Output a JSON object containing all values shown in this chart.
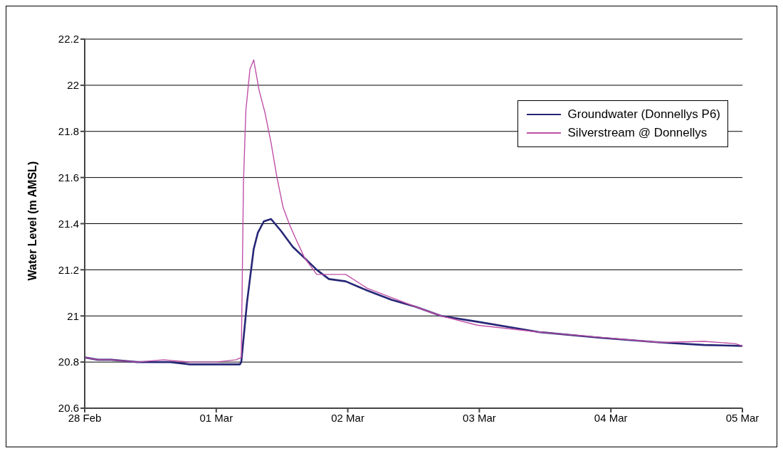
{
  "chart_data": {
    "type": "line",
    "ylabel": "Water Level (m AMSL)",
    "xlim": [
      "--02-28",
      "--03-05"
    ],
    "xticks": [
      {
        "value": "--02-28",
        "label": "28 Feb"
      },
      {
        "value": "--03-01",
        "label": "01 Mar"
      },
      {
        "value": "--03-02",
        "label": "02 Mar"
      },
      {
        "value": "--03-03",
        "label": "03 Mar"
      },
      {
        "value": "--03-04",
        "label": "04 Mar"
      },
      {
        "value": "--03-05",
        "label": "05 Mar"
      }
    ],
    "ylim": [
      20.6,
      22.2
    ],
    "yticks": [
      20.6,
      20.8,
      21,
      21.2,
      21.4,
      21.6,
      21.8,
      22,
      22.2
    ],
    "grid": "y",
    "legend": "top right",
    "marker": "none",
    "line_style": "solid",
    "series": [
      {
        "name": "Groundwater (Donnellys P6)",
        "color": "#262676",
        "x": [
          "--02-28T00:00",
          "--02-28T02:24",
          "--02-28T04:48",
          "--02-28T09:36",
          "--02-28T14:24",
          "--02-28T15:36",
          "--02-28T19:12",
          "--03-01T00:00",
          "--03-01T04:19",
          "--03-01T04:34",
          "--03-01T05:37",
          "--03-01T06:50",
          "--03-01T07:35",
          "--03-01T08:41",
          "--03-01T10:00",
          "--03-01T11:46",
          "--03-01T13:57",
          "--03-01T16:09",
          "--03-01T18:20",
          "--03-01T20:33",
          "--03-01T23:37",
          "--03-02T03:33",
          "--03-02T07:57",
          "--03-02T12:20",
          "--03-02T17:02",
          "--03-02T23:37",
          "--03-03T10:54",
          "--03-03T22:11",
          "--03-04T08:59",
          "--03-04T17:02",
          "--03-05T00:00"
        ],
        "values": [
          20.82,
          20.81,
          20.81,
          20.8,
          20.8,
          20.8,
          20.79,
          20.79,
          20.79,
          20.8,
          21.06,
          21.29,
          21.36,
          21.41,
          21.42,
          21.37,
          21.3,
          21.25,
          21.2,
          21.16,
          21.15,
          21.11,
          21.07,
          21.04,
          21.0,
          20.975,
          20.93,
          20.905,
          20.885,
          20.874,
          20.87
        ]
      },
      {
        "name": "Silverstream @ Donnellys",
        "color": "#c050a8",
        "x": [
          "--02-28T00:00",
          "--02-28T02:24",
          "--02-28T04:48",
          "--02-28T09:36",
          "--02-28T14:24",
          "--02-28T19:12",
          "--03-01T00:00",
          "--03-01T03:36",
          "--03-01T04:34",
          "--03-01T04:58",
          "--03-01T05:24",
          "--03-01T06:09",
          "--03-01T06:50",
          "--03-01T07:48",
          "--03-01T08:54",
          "--03-01T10:00",
          "--03-01T11:05",
          "--03-01T12:12",
          "--03-01T13:18",
          "--03-01T14:24",
          "--03-01T16:09",
          "--03-01T18:20",
          "--03-01T20:33",
          "--03-01T23:37",
          "--03-02T03:33",
          "--03-02T07:57",
          "--03-02T12:20",
          "--03-02T14:38",
          "--03-02T17:02",
          "--03-02T23:37",
          "--03-03T10:54",
          "--03-03T22:11",
          "--03-04T08:59",
          "--03-04T17:02",
          "--03-04T22:39",
          "--03-05T00:00"
        ],
        "values": [
          20.82,
          20.81,
          20.81,
          20.8,
          20.81,
          20.8,
          20.8,
          20.81,
          20.82,
          21.58,
          21.89,
          22.07,
          22.11,
          21.98,
          21.88,
          21.75,
          21.6,
          21.47,
          21.4,
          21.34,
          21.25,
          21.18,
          21.18,
          21.18,
          21.12,
          21.08,
          21.04,
          21.02,
          21.0,
          20.96,
          20.93,
          20.907,
          20.885,
          20.89,
          20.88,
          20.87
        ]
      }
    ]
  }
}
